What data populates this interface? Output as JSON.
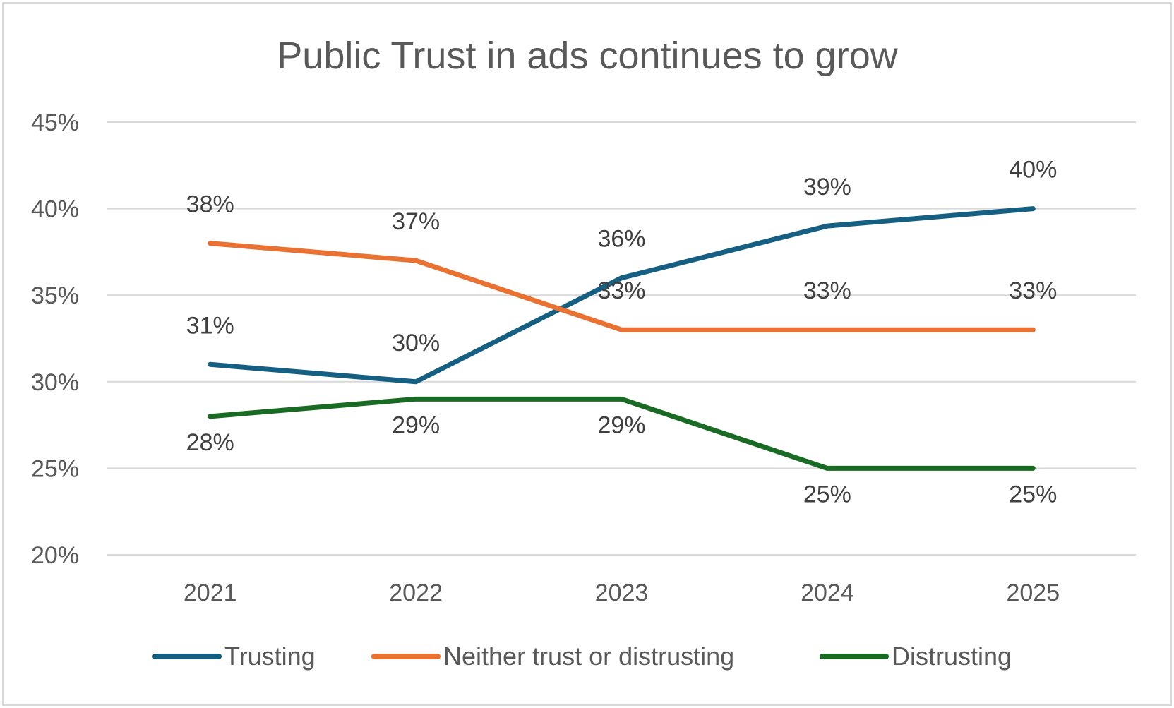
{
  "chart_data": {
    "type": "line",
    "title": "Public Trust in ads continues to grow",
    "xlabel": "",
    "ylabel": "",
    "categories": [
      "2021",
      "2022",
      "2023",
      "2024",
      "2025"
    ],
    "ylim": [
      0.2,
      0.45
    ],
    "yticks": [
      "20%",
      "25%",
      "30%",
      "35%",
      "40%",
      "45%"
    ],
    "grid": true,
    "legend": "bottom",
    "data_labels": true,
    "series": [
      {
        "name": "Trusting",
        "color": "#156082",
        "values": [
          0.31,
          0.3,
          0.36,
          0.39,
          0.4
        ],
        "labels": [
          "31%",
          "30%",
          "36%",
          "39%",
          "40%"
        ]
      },
      {
        "name": "Neither trust or distrusting",
        "color": "#E97132",
        "values": [
          0.38,
          0.37,
          0.33,
          0.33,
          0.33
        ],
        "labels": [
          "38%",
          "37%",
          "33%",
          "33%",
          "33%"
        ]
      },
      {
        "name": "Distrusting",
        "color": "#196B24",
        "values": [
          0.28,
          0.29,
          0.29,
          0.25,
          0.25
        ],
        "labels": [
          "28%",
          "29%",
          "29%",
          "25%",
          "25%"
        ]
      }
    ]
  }
}
